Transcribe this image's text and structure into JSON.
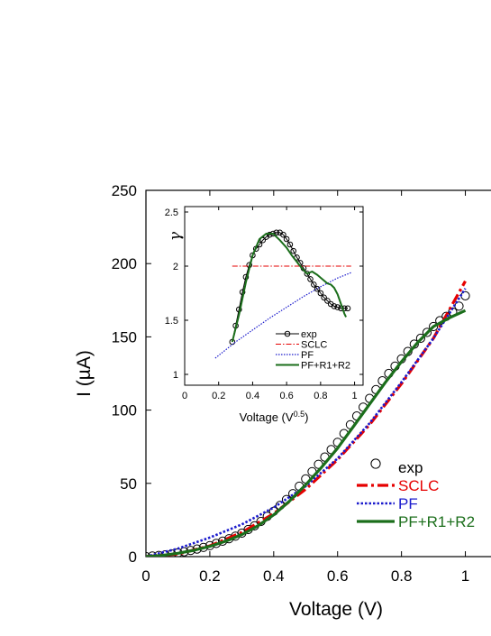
{
  "chart_data": [
    {
      "id": "main",
      "type": "line",
      "xlabel": "Voltage (V)",
      "ylabel": "I (µA)",
      "xlim": [
        0,
        1.1
      ],
      "ylim": [
        0,
        250
      ],
      "xticks": [
        0,
        0.2,
        0.4,
        0.6,
        0.8,
        1
      ],
      "xtick_labels": [
        "0",
        "0.2",
        "0.4",
        "0.6",
        "0.8",
        "1"
      ],
      "yticks": [
        0,
        50,
        100,
        150,
        200,
        250
      ],
      "ytick_labels": [
        "0",
        "50",
        "100",
        "150",
        "200",
        "250"
      ],
      "grid": false,
      "legend_position": "bottom-right",
      "series": [
        {
          "name": "exp",
          "style": "markers",
          "color": "#000000",
          "x": [
            0.0,
            0.02,
            0.04,
            0.06,
            0.08,
            0.1,
            0.12,
            0.14,
            0.16,
            0.18,
            0.2,
            0.22,
            0.24,
            0.26,
            0.28,
            0.3,
            0.32,
            0.34,
            0.36,
            0.38,
            0.4,
            0.42,
            0.44,
            0.46,
            0.48,
            0.5,
            0.52,
            0.54,
            0.56,
            0.58,
            0.6,
            0.62,
            0.64,
            0.66,
            0.68,
            0.7,
            0.72,
            0.74,
            0.76,
            0.78,
            0.8,
            0.82,
            0.84,
            0.86,
            0.88,
            0.9,
            0.92,
            0.94,
            0.96,
            0.98,
            1.0
          ],
          "y": [
            0,
            0.4,
            0.8,
            1.2,
            1.8,
            2.5,
            3.3,
            4.2,
            5.2,
            6.3,
            7.5,
            9.0,
            10.5,
            12.2,
            14.0,
            16.0,
            18.5,
            21.0,
            24.0,
            27.5,
            31.0,
            35.0,
            39.0,
            43.0,
            48.0,
            53.0,
            58.0,
            63.0,
            68.0,
            73.0,
            78.0,
            84.0,
            90.0,
            96.0,
            102.0,
            108.0,
            114.0,
            120.0,
            125.0,
            130.0,
            135.0,
            140.0,
            145.0,
            149.0,
            153.0,
            157.0,
            161.0,
            164.0,
            167.0,
            171.0,
            178.0
          ]
        },
        {
          "name": "SCLC",
          "style": "dashdot",
          "color": "#e60000",
          "x": [
            0.0,
            0.1,
            0.2,
            0.3,
            0.4,
            0.5,
            0.6,
            0.7,
            0.8,
            0.9,
            1.0
          ],
          "y": [
            0,
            1.8,
            7.3,
            16.5,
            29.4,
            46.0,
            66.2,
            90.0,
            118.0,
            149.0,
            188.0
          ]
        },
        {
          "name": "PF",
          "style": "dotted",
          "color": "#1a1acc",
          "x": [
            0.0,
            0.1,
            0.2,
            0.3,
            0.4,
            0.5,
            0.6,
            0.7,
            0.8,
            0.9,
            1.0
          ],
          "y": [
            0,
            5.5,
            13.0,
            22.0,
            33.5,
            48.0,
            67.0,
            91.0,
            119.0,
            149.0,
            183.0
          ]
        },
        {
          "name": "PF+R1+R2",
          "style": "solid",
          "color": "#1b6e1b",
          "x": [
            0.0,
            0.05,
            0.1,
            0.15,
            0.2,
            0.25,
            0.3,
            0.35,
            0.4,
            0.45,
            0.5,
            0.55,
            0.6,
            0.65,
            0.7,
            0.75,
            0.8,
            0.85,
            0.9,
            0.95,
            1.0
          ],
          "y": [
            0,
            0.8,
            2.3,
            4.3,
            7.0,
            10.5,
            15.0,
            21.0,
            28.5,
            38.0,
            49.0,
            61.0,
            74.0,
            89.0,
            104.0,
            119.0,
            133.0,
            146.0,
            157.0,
            163.0,
            168.0
          ]
        }
      ]
    },
    {
      "id": "inset",
      "type": "line",
      "xlabel": "Voltage (V",
      "xlabel_sup": "0.5",
      "xlabel_end": ")",
      "ylabel": "γ",
      "xlim": [
        0,
        1.05
      ],
      "ylim": [
        0.9,
        2.55
      ],
      "xticks": [
        0,
        0.2,
        0.4,
        0.6,
        0.8,
        1
      ],
      "xtick_labels": [
        "0",
        "0.2",
        "0.4",
        "0.6",
        "0.8",
        "1"
      ],
      "yticks": [
        1,
        1.5,
        2,
        2.5
      ],
      "ytick_labels": [
        "1",
        "1.5",
        "2",
        "2.5"
      ],
      "grid": false,
      "legend_position": "bottom-right",
      "series": [
        {
          "name": "exp",
          "style": "line-markers",
          "color": "#000000",
          "x": [
            0.28,
            0.3,
            0.32,
            0.34,
            0.36,
            0.38,
            0.4,
            0.42,
            0.44,
            0.46,
            0.48,
            0.5,
            0.52,
            0.54,
            0.56,
            0.58,
            0.6,
            0.62,
            0.64,
            0.66,
            0.68,
            0.7,
            0.72,
            0.74,
            0.76,
            0.78,
            0.8,
            0.82,
            0.84,
            0.86,
            0.88,
            0.9,
            0.92,
            0.94,
            0.96
          ],
          "y": [
            1.3,
            1.45,
            1.6,
            1.76,
            1.9,
            2.01,
            2.1,
            2.16,
            2.2,
            2.24,
            2.27,
            2.29,
            2.3,
            2.31,
            2.31,
            2.29,
            2.25,
            2.2,
            2.14,
            2.08,
            2.03,
            1.98,
            1.93,
            1.88,
            1.83,
            1.79,
            1.75,
            1.71,
            1.68,
            1.65,
            1.63,
            1.62,
            1.61,
            1.61,
            1.61
          ]
        },
        {
          "name": "SCLC",
          "style": "dashdot",
          "color": "#e60000",
          "x": [
            0.28,
            0.98
          ],
          "y": [
            2.0,
            2.0
          ]
        },
        {
          "name": "PF",
          "style": "dotted",
          "color": "#1a1acc",
          "x": [
            0.18,
            0.3,
            0.4,
            0.5,
            0.6,
            0.7,
            0.8,
            0.9,
            0.98
          ],
          "y": [
            1.15,
            1.3,
            1.41,
            1.52,
            1.62,
            1.72,
            1.81,
            1.89,
            1.94
          ]
        },
        {
          "name": "PF+R1+R2",
          "style": "solid",
          "color": "#1b6e1b",
          "x": [
            0.28,
            0.32,
            0.36,
            0.4,
            0.44,
            0.48,
            0.52,
            0.56,
            0.6,
            0.63,
            0.66,
            0.69,
            0.72,
            0.75,
            0.78,
            0.81,
            0.84,
            0.86,
            0.88,
            0.9,
            0.92,
            0.94,
            0.95
          ],
          "y": [
            1.3,
            1.55,
            1.85,
            2.1,
            2.25,
            2.3,
            2.3,
            2.24,
            2.17,
            2.1,
            2.04,
            1.98,
            1.93,
            1.95,
            1.92,
            1.88,
            1.84,
            1.83,
            1.8,
            1.74,
            1.65,
            1.56,
            1.53
          ]
        }
      ]
    }
  ]
}
